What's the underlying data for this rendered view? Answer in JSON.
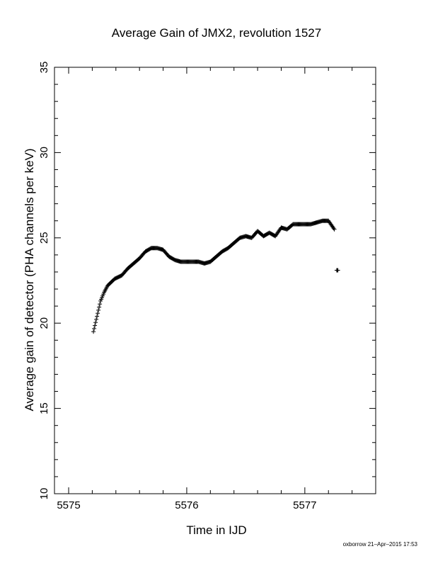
{
  "chart_data": {
    "type": "scatter",
    "title": "Average Gain of JMX2, revolution 1527",
    "xlabel": "Time in IJD",
    "ylabel": "Average gain of detector (PHA channels per keV)",
    "xlim": [
      5574.88,
      5577.6
    ],
    "ylim": [
      10,
      35
    ],
    "x_ticks": [
      "5575",
      "5576",
      "5577"
    ],
    "x_tick_values": [
      5575,
      5576,
      5577
    ],
    "x_minor_step": 0.2,
    "y_ticks": [
      "10",
      "15",
      "20",
      "25",
      "30",
      "35"
    ],
    "y_tick_values": [
      10,
      15,
      20,
      25,
      30,
      35
    ],
    "y_minor_step": 1,
    "grid": false,
    "marker": "plus",
    "series": [
      {
        "x": [
          5575.21,
          5575.24,
          5575.27,
          5575.3,
          5575.33,
          5575.36,
          5575.39,
          5575.42,
          5575.45,
          5575.5,
          5575.55,
          5575.6,
          5575.65,
          5575.7,
          5575.75,
          5575.8,
          5575.85,
          5575.9,
          5575.95,
          5576.0,
          5576.05,
          5576.1,
          5576.15,
          5576.2,
          5576.25,
          5576.3,
          5576.35,
          5576.4,
          5576.45,
          5576.5,
          5576.55,
          5576.6,
          5576.65,
          5576.7,
          5576.75,
          5576.8,
          5576.85,
          5576.9,
          5576.95,
          5577.0,
          5577.05,
          5577.1,
          5577.15,
          5577.2,
          5577.25,
          5577.27,
          5577.28
        ],
        "y": [
          19.5,
          20.4,
          21.3,
          21.8,
          22.2,
          22.4,
          22.6,
          22.7,
          22.8,
          23.2,
          23.5,
          23.8,
          24.2,
          24.4,
          24.4,
          24.3,
          23.9,
          23.7,
          23.6,
          23.6,
          23.6,
          23.6,
          23.5,
          23.6,
          23.9,
          24.2,
          24.4,
          24.7,
          25.0,
          25.1,
          25.0,
          25.4,
          25.1,
          25.3,
          25.1,
          25.6,
          25.5,
          25.8,
          25.8,
          25.8,
          25.8,
          25.9,
          26.0,
          26.0,
          25.5,
          23.1,
          23.1
        ]
      }
    ]
  },
  "footer": {
    "credit": "oxborrow 21–Apr–2015 17:53"
  }
}
